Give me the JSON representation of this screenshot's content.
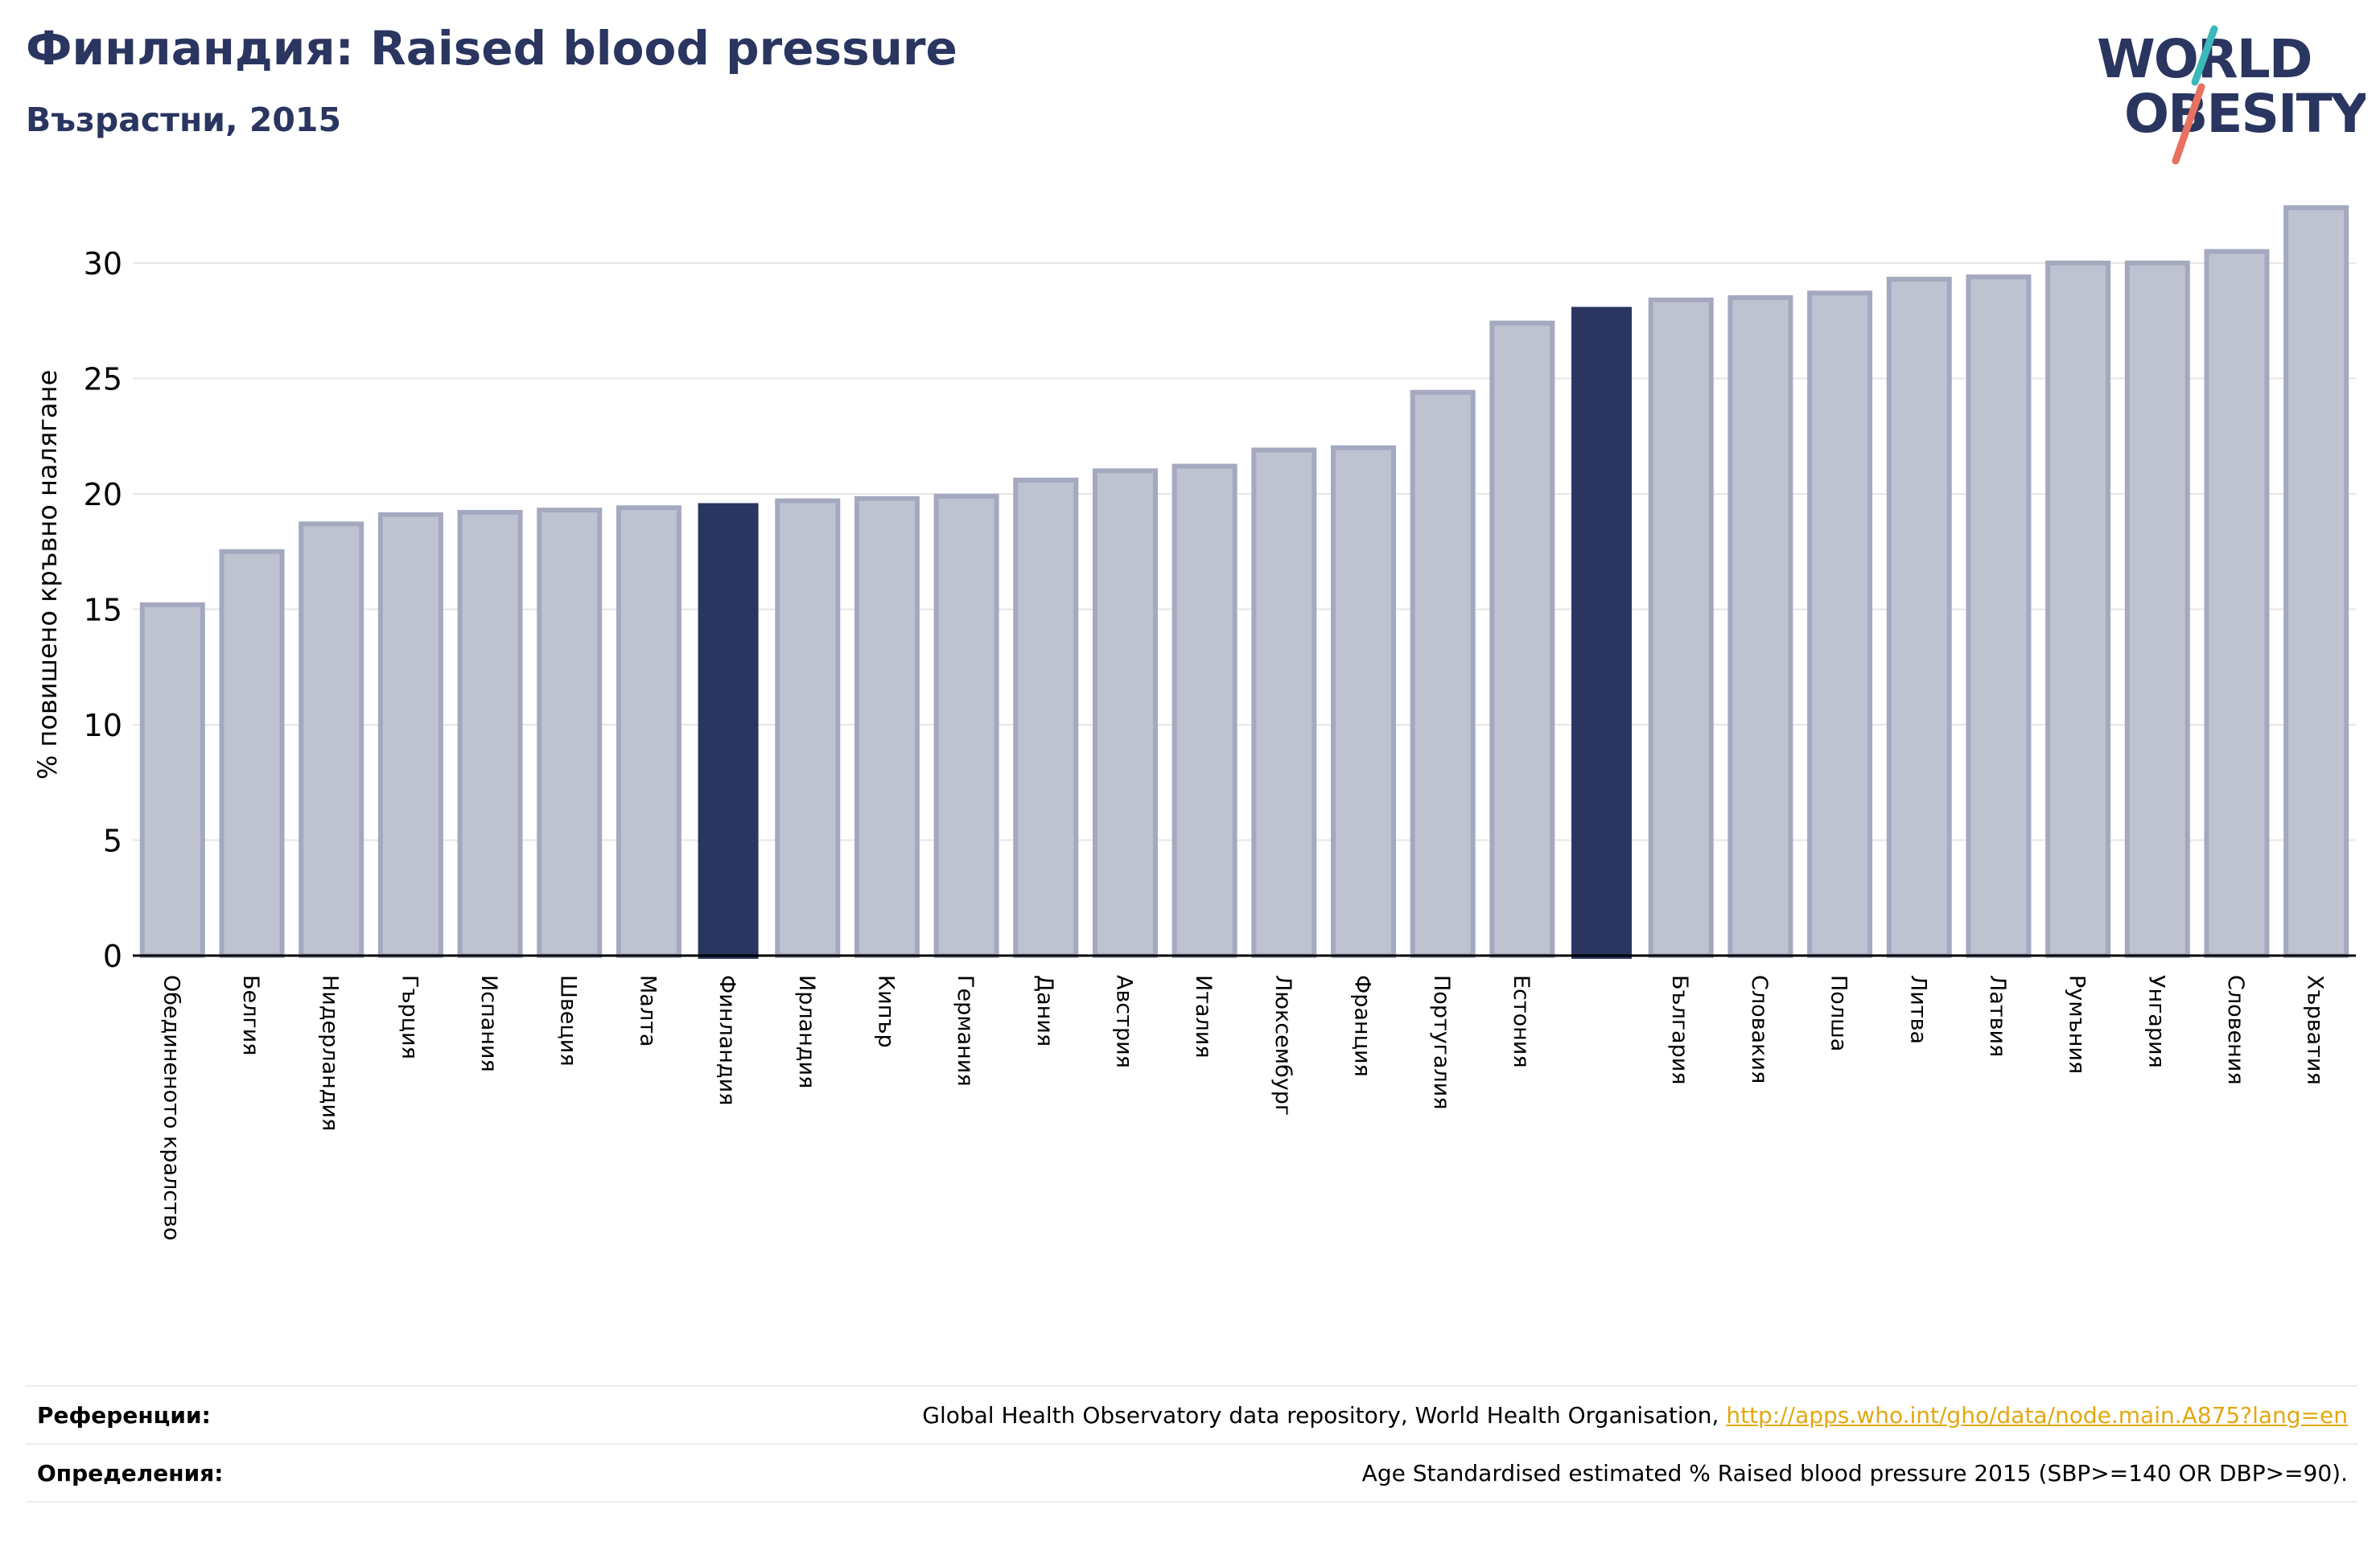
{
  "header": {
    "title": "Финландия: Raised blood pressure",
    "subtitle": "Възрастни, 2015"
  },
  "logo": {
    "line1": "WORLD",
    "line2": "OBESITY",
    "text_color": "#2a3560",
    "slash_colors": [
      "#3bb8b8",
      "#e8715f"
    ]
  },
  "colors": {
    "bar_default": "#bfc2d0",
    "bar_default_edge": "#a5a9bf",
    "bar_highlight": "#2a3560",
    "axis": "#000000",
    "grid": "#e6e6e6"
  },
  "chart_data": {
    "type": "bar",
    "ylabel": "% повишено кръвно налягане",
    "ylim": [
      0,
      33
    ],
    "yticks": [
      0,
      5,
      10,
      15,
      20,
      25,
      30
    ],
    "grid": true,
    "categories": [
      "Обединеното кралство",
      "Белгия",
      "Нидерландия",
      "Гърция",
      "Испания",
      "Швеция",
      "Малта",
      "Финландия",
      "Ирландия",
      "Кипър",
      "Германия",
      "Дания",
      "Австрия",
      "Италия",
      "Люксембург",
      "Франция",
      "Португалия",
      "Естония",
      "",
      "България",
      "Словакия",
      "Полша",
      "Литва",
      "Латвия",
      "Румъния",
      "Унгария",
      "Словения",
      "Хърватия"
    ],
    "values": [
      15.2,
      17.5,
      18.7,
      19.1,
      19.2,
      19.3,
      19.4,
      19.6,
      19.7,
      19.8,
      19.9,
      20.6,
      21.0,
      21.2,
      21.9,
      22.0,
      24.4,
      27.4,
      28.1,
      28.4,
      28.5,
      28.7,
      29.3,
      29.4,
      30.0,
      30.0,
      30.5,
      32.4
    ],
    "highlighted": [
      7,
      18
    ]
  },
  "footer": {
    "references_label": "Референции:",
    "references_text": "Global Health Observatory data repository, World Health Organisation, ",
    "references_link": "http://apps.who.int/gho/data/node.main.A875?lang=en",
    "definitions_label": "Определения:",
    "definitions_text": "Age Standardised estimated % Raised blood pressure 2015 (SBP>=140 OR DBP>=90)."
  }
}
